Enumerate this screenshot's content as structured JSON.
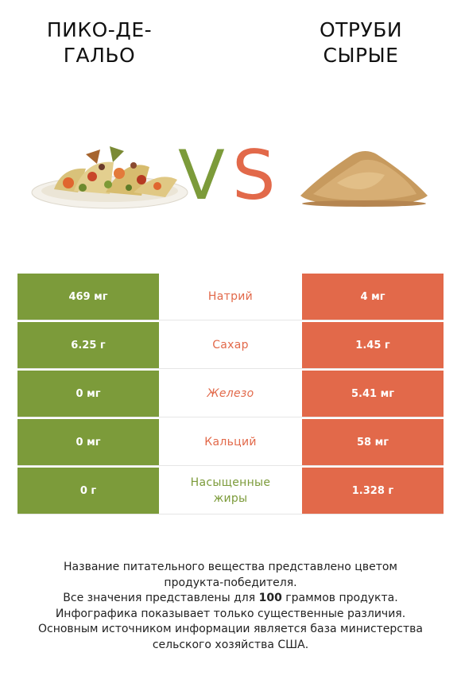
{
  "header": {
    "left_title_line1": "ПИКО-ДЕ-",
    "left_title_line2": "ГАЛЬО",
    "right_title_line1": "ОТРУБИ",
    "right_title_line2": "СЫРЫЕ",
    "vs_v": "V",
    "vs_s": "S"
  },
  "colors": {
    "left_accent": "#7c9b3a",
    "right_accent": "#e2694a"
  },
  "rows": [
    {
      "left": "469 мг",
      "label": "Натрий",
      "right": "4 мг",
      "winner": "right"
    },
    {
      "left": "6.25 г",
      "label": "Сахар",
      "right": "1.45 г",
      "winner": "right"
    },
    {
      "left": "0 мг",
      "label": "Железо",
      "right": "5.41 мг",
      "winner": "right"
    },
    {
      "left": "0 мг",
      "label": "Кальций",
      "right": "58 мг",
      "winner": "right"
    },
    {
      "left": "0 г",
      "label_line1": "Насыщенные",
      "label_line2": "жиры",
      "right": "1.328 г",
      "winner": "left"
    }
  ],
  "footer": {
    "line1": "Название питательного вещества представлено цветом",
    "line2": "продукта-победителя.",
    "line3_pre": "Все значения представлены для ",
    "line3_bold": "100",
    "line3_post": " граммов продукта.",
    "line4": "Инфографика показывает только существенные различия.",
    "line5": "Основным источником информации является база министерства",
    "line6": "сельского хозяйства США."
  }
}
